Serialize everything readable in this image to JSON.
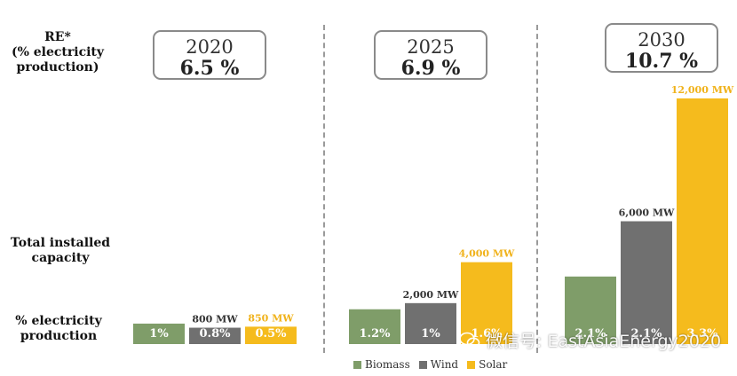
{
  "labels": {
    "re_label": [
      "RE*",
      "(% electricity",
      "production)"
    ],
    "capacity_label": [
      "Total installed",
      "capacity"
    ],
    "pct_label": [
      "% electricity",
      "production"
    ]
  },
  "years": [
    {
      "year": "2020",
      "re_share": "6.5 %"
    },
    {
      "year": "2025",
      "re_share": "6.9 %"
    },
    {
      "year": "2030",
      "re_share": "10.7 %"
    }
  ],
  "colors": {
    "Biomass": "#7f9d69",
    "Wind": "#707070",
    "Solar": "#f5bb1d"
  },
  "legend": [
    "Biomass",
    "Wind",
    "Solar"
  ],
  "watermark": "微信号: EastAsiaEnergy2020",
  "chart_data": {
    "type": "bar",
    "categories": [
      "2020",
      "2025",
      "2030"
    ],
    "series": [
      {
        "name": "Biomass",
        "values": [
          null,
          null,
          null
        ],
        "capacity_labels": [
          "",
          "",
          ""
        ],
        "pct_labels": [
          "1%",
          "1.2%",
          "2.1%"
        ]
      },
      {
        "name": "Wind",
        "values": [
          800,
          2000,
          6000
        ],
        "capacity_labels": [
          "800 MW",
          "2,000 MW",
          "6,000 MW"
        ],
        "pct_labels": [
          "0.8%",
          "1%",
          "2.1%"
        ]
      },
      {
        "name": "Solar",
        "values": [
          850,
          4000,
          12000
        ],
        "capacity_labels": [
          "850 MW",
          "4,000 MW",
          "12,000 MW"
        ],
        "pct_labels": [
          "0.5%",
          "1.6%",
          "3.3%"
        ]
      }
    ],
    "bar_heights_estimate_mw": {
      "Biomass": [
        1000,
        1700,
        3300
      ]
    },
    "legend": "bottom"
  }
}
